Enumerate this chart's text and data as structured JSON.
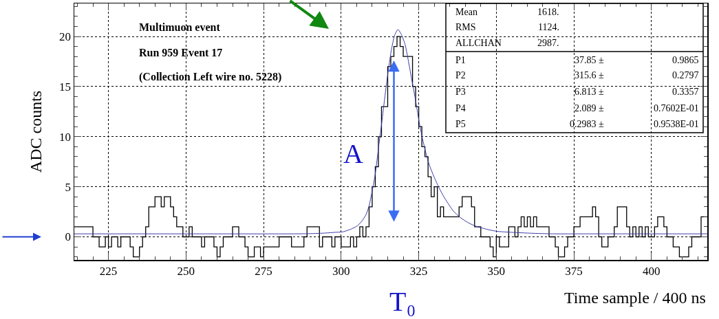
{
  "chart_data": {
    "type": "histogram",
    "xlabel": "Time sample / 400 ns",
    "ylabel": "ADC counts",
    "annotations": [
      "Multimuon event",
      "Run 959 Event 17",
      "(Collection Left wire no. 5228)",
      "Mean\t1618.",
      "RMS\t1124.",
      "ALLCHAN\t2987.",
      "P1\t37.85 ±\t0.9865",
      "P2\t315.6 ±\t0.2797",
      "P3\t6.813 ±\t0.3357",
      "P4\t2.089 ±\t0.7602E-01",
      "P5\t0.2983 ±\t0.9538E-01",
      "A",
      "T₀"
    ],
    "series": [
      {
        "color": "#000000",
        "bins": [
          214,
          220,
          222,
          224,
          225,
          226,
          228,
          229,
          232,
          233,
          235,
          236,
          237,
          238,
          240,
          242,
          243,
          245,
          246,
          247,
          249,
          251,
          252,
          255,
          256,
          259,
          260,
          261,
          262,
          265,
          267,
          269,
          270,
          272,
          274,
          275,
          280,
          284,
          288,
          289,
          293,
          294,
          297,
          298,
          300,
          303,
          304,
          305,
          306,
          307,
          308,
          309,
          310,
          311,
          312,
          313,
          315,
          316,
          317,
          318,
          319,
          320,
          323,
          324,
          325,
          326,
          327,
          328,
          329,
          330,
          331,
          332,
          333,
          338,
          339,
          342,
          343,
          345,
          348,
          349,
          350,
          351,
          354,
          356,
          357,
          358,
          359,
          360,
          361,
          362,
          363,
          367,
          369,
          370,
          372,
          373,
          375,
          377,
          381,
          382,
          383,
          384,
          386,
          388,
          389,
          392,
          393,
          394,
          395,
          396,
          397,
          398,
          399,
          401,
          402,
          404,
          405,
          407,
          409,
          412,
          413,
          416,
          418
        ],
        "values": [
          1,
          0,
          -1,
          0,
          -1,
          0,
          -1,
          0,
          -1,
          -2,
          -1,
          0,
          1,
          3,
          4,
          3,
          4,
          3,
          2,
          1,
          0,
          1,
          0,
          -1,
          0,
          -1,
          -2,
          -1,
          0,
          1,
          0,
          -1,
          -2,
          -1,
          -2,
          -1,
          0,
          -1,
          0,
          1,
          -1,
          0,
          -1,
          0,
          -1,
          0,
          -1,
          0,
          1,
          0,
          1,
          3,
          5,
          7,
          10,
          13,
          17,
          18,
          19,
          20,
          19,
          18,
          15,
          13,
          11,
          9,
          8,
          6,
          4,
          5,
          2,
          3,
          2,
          3,
          4,
          3,
          1,
          0,
          -1,
          -2,
          0,
          -1,
          1,
          0,
          1,
          2,
          1,
          2,
          1,
          2,
          1,
          0,
          -1,
          -2,
          -1,
          0,
          1,
          2,
          3,
          2,
          0,
          -1,
          0,
          1,
          3,
          1,
          0,
          1,
          0,
          1,
          0,
          1,
          0,
          1,
          2,
          1,
          0,
          -1,
          -2,
          -1,
          0,
          2
        ]
      },
      {
        "type": "line",
        "color": "#3b3ba8",
        "x": [
          214,
          250,
          285,
          290,
          295,
          298,
          300.6,
          303,
          305,
          306.5,
          308,
          309,
          310.2,
          311,
          312,
          313,
          313.9,
          315,
          316.1,
          317.2,
          318.3,
          319.4,
          320.6,
          321.7,
          322.8,
          324,
          325,
          326,
          327.2,
          328.5,
          330.2,
          331.7,
          333.1,
          336.1,
          338.3,
          341,
          343.5,
          347,
          350.2,
          355,
          361.3,
          368,
          376,
          390,
          405,
          418
        ],
        "values": [
          0.3,
          0.3,
          0.3,
          0.32,
          0.38,
          0.45,
          0.5,
          0.75,
          1.05,
          1.5,
          2.2,
          3.1,
          4.9,
          6.3,
          8.8,
          11.2,
          13.5,
          16.2,
          18.5,
          20.1,
          20.7,
          20.2,
          19.2,
          17.5,
          15.6,
          13.6,
          11.7,
          10.1,
          8.5,
          7.1,
          5.8,
          4.8,
          4.0,
          2.6,
          1.95,
          1.4,
          1.05,
          0.75,
          0.55,
          0.45,
          0.36,
          0.3,
          0.3,
          0.3,
          0.3,
          0.3
        ]
      }
    ],
    "xlim": [
      214,
      418
    ],
    "xticks": [
      225,
      250,
      275,
      300,
      325,
      350,
      375,
      400
    ],
    "ylim": [
      -2.3,
      23.3
    ],
    "yticks": [
      0,
      5,
      10,
      15,
      20
    ],
    "grid": true
  }
}
